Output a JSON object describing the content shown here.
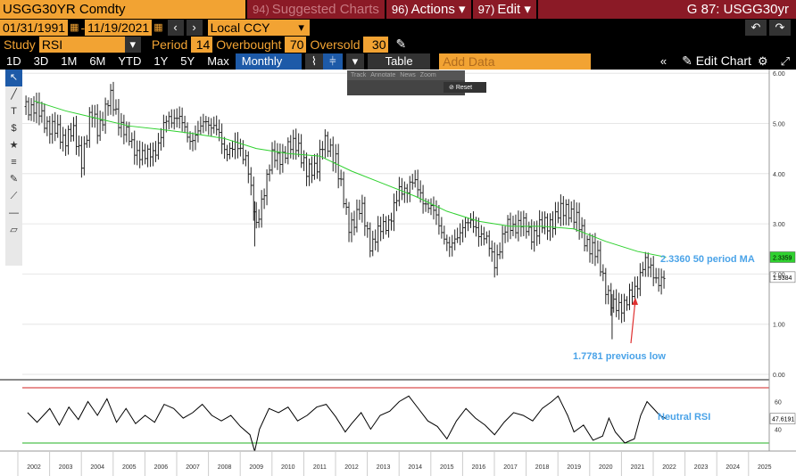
{
  "header": {
    "ticker": "USGG30YR Comdty",
    "menu_suggested": "Suggested Charts",
    "menu_suggested_num": "94)",
    "menu_actions": "Actions",
    "menu_actions_num": "96)",
    "menu_edit": "Edit",
    "menu_edit_num": "97)",
    "title": "G 87: USGG30yr"
  },
  "dates": {
    "start": "01/31/1991",
    "end": "11/19/2021",
    "currency": "Local CCY"
  },
  "study": {
    "label": "Study",
    "value": "RSI",
    "period_label": "Period",
    "period": "14",
    "overbought_label": "Overbought",
    "overbought": "70",
    "oversold_label": "Oversold",
    "oversold": "30"
  },
  "toolbar": {
    "ranges": [
      "1D",
      "3D",
      "1M",
      "6M",
      "YTD",
      "1Y",
      "5Y",
      "Max"
    ],
    "frequency": "Monthly",
    "table": "Table",
    "add_data_placeholder": "Add Data",
    "edit_chart": "Edit Chart"
  },
  "float_tools": {
    "labels": [
      "Track",
      "Annotate",
      "News",
      "Zoom"
    ],
    "reset": "Reset"
  },
  "colors": {
    "accent": "#f2a333",
    "menu": "#8b1a26",
    "ma": "#2fd12f",
    "annotation": "#4aa3e8",
    "arrow": "#e03030",
    "overbought": "#d02020",
    "oversold": "#22b022"
  },
  "chart_data": [
    {
      "type": "ohlc-bar",
      "title": "",
      "series": [
        {
          "name": "USGG30YR",
          "last": "1.9384"
        },
        {
          "name": "50 period MA",
          "last": "2.3359"
        }
      ],
      "x": [
        "2002",
        "2003",
        "2004",
        "2005",
        "2006",
        "2007",
        "2008",
        "2009",
        "2010",
        "2011",
        "2012",
        "2013",
        "2014",
        "2015",
        "2016",
        "2017",
        "2018",
        "2019",
        "2020",
        "2021",
        "2022",
        "2023",
        "2024",
        "2025"
      ],
      "ylim": [
        0,
        6
      ],
      "yticks": [
        "0.00",
        "1.00",
        "2.00",
        "3.00",
        "4.00",
        "5.00",
        "6.00"
      ],
      "price_points": [
        [
          2001.0,
          5.7
        ],
        [
          2001.5,
          5.45
        ],
        [
          2002.0,
          5.3
        ],
        [
          2002.5,
          4.95
        ],
        [
          2002.9,
          4.7
        ],
        [
          2003.2,
          4.85
        ],
        [
          2003.5,
          4.3
        ],
        [
          2003.8,
          5.2
        ],
        [
          2004.0,
          4.9
        ],
        [
          2004.4,
          5.5
        ],
        [
          2004.8,
          4.9
        ],
        [
          2005.1,
          4.55
        ],
        [
          2005.5,
          4.3
        ],
        [
          2005.9,
          4.55
        ],
        [
          2006.2,
          5.1
        ],
        [
          2006.5,
          5.15
        ],
        [
          2006.9,
          4.7
        ],
        [
          2007.2,
          4.8
        ],
        [
          2007.4,
          5.1
        ],
        [
          2007.7,
          4.9
        ],
        [
          2008.0,
          4.5
        ],
        [
          2008.4,
          4.5
        ],
        [
          2008.7,
          4.35
        ],
        [
          2008.9,
          3.3
        ],
        [
          2009.0,
          2.9
        ],
        [
          2009.2,
          3.6
        ],
        [
          2009.5,
          4.3
        ],
        [
          2009.9,
          4.4
        ],
        [
          2010.3,
          4.65
        ],
        [
          2010.6,
          3.95
        ],
        [
          2010.9,
          4.2
        ],
        [
          2011.1,
          4.6
        ],
        [
          2011.5,
          4.35
        ],
        [
          2011.7,
          3.6
        ],
        [
          2011.9,
          2.95
        ],
        [
          2012.3,
          3.3
        ],
        [
          2012.6,
          2.6
        ],
        [
          2012.9,
          2.85
        ],
        [
          2013.2,
          3.1
        ],
        [
          2013.5,
          3.6
        ],
        [
          2013.9,
          3.85
        ],
        [
          2014.2,
          3.55
        ],
        [
          2014.6,
          3.2
        ],
        [
          2014.9,
          2.8
        ],
        [
          2015.1,
          2.45
        ],
        [
          2015.5,
          3.0
        ],
        [
          2015.9,
          2.95
        ],
        [
          2016.2,
          2.7
        ],
        [
          2016.5,
          2.25
        ],
        [
          2016.9,
          2.95
        ],
        [
          2017.3,
          3.0
        ],
        [
          2017.7,
          2.8
        ],
        [
          2018.0,
          2.95
        ],
        [
          2018.4,
          3.1
        ],
        [
          2018.8,
          3.35
        ],
        [
          2019.2,
          2.9
        ],
        [
          2019.5,
          2.55
        ],
        [
          2019.8,
          2.25
        ],
        [
          2020.2,
          1.3
        ],
        [
          2020.4,
          1.35
        ],
        [
          2020.7,
          1.5
        ],
        [
          2020.9,
          1.6
        ],
        [
          2021.2,
          2.3
        ],
        [
          2021.4,
          2.05
        ],
        [
          2021.6,
          1.9
        ],
        [
          2021.9,
          1.94
        ]
      ],
      "ma_points": [
        [
          2001.0,
          5.75
        ],
        [
          2002.0,
          5.45
        ],
        [
          2003.0,
          5.25
        ],
        [
          2004.0,
          5.1
        ],
        [
          2005.0,
          4.95
        ],
        [
          2006.0,
          4.88
        ],
        [
          2007.0,
          4.8
        ],
        [
          2008.0,
          4.7
        ],
        [
          2009.0,
          4.5
        ],
        [
          2010.0,
          4.4
        ],
        [
          2011.0,
          4.35
        ],
        [
          2012.0,
          4.05
        ],
        [
          2013.0,
          3.8
        ],
        [
          2014.0,
          3.55
        ],
        [
          2015.0,
          3.25
        ],
        [
          2016.0,
          3.05
        ],
        [
          2017.0,
          2.95
        ],
        [
          2018.0,
          2.95
        ],
        [
          2019.0,
          2.9
        ],
        [
          2020.0,
          2.65
        ],
        [
          2021.0,
          2.45
        ],
        [
          2021.9,
          2.336
        ]
      ],
      "annotations": [
        {
          "text": "2.3360 50 period MA"
        },
        {
          "text": "1.7781 previous low"
        }
      ]
    },
    {
      "type": "line",
      "title": "",
      "series": [
        {
          "name": "RSI",
          "last": "47.6191"
        }
      ],
      "ylim": [
        20,
        80
      ],
      "yticks": [
        "40",
        "60"
      ],
      "overbought": 70,
      "oversold": 30,
      "rsi_points": [
        [
          2001.0,
          58
        ],
        [
          2001.4,
          46
        ],
        [
          2001.8,
          52
        ],
        [
          2002.1,
          45
        ],
        [
          2002.5,
          55
        ],
        [
          2002.8,
          43
        ],
        [
          2003.1,
          56
        ],
        [
          2003.4,
          47
        ],
        [
          2003.7,
          60
        ],
        [
          2004.0,
          50
        ],
        [
          2004.3,
          62
        ],
        [
          2004.6,
          45
        ],
        [
          2004.9,
          55
        ],
        [
          2005.2,
          44
        ],
        [
          2005.5,
          50
        ],
        [
          2005.8,
          45
        ],
        [
          2006.1,
          58
        ],
        [
          2006.4,
          55
        ],
        [
          2006.7,
          48
        ],
        [
          2007.0,
          52
        ],
        [
          2007.3,
          58
        ],
        [
          2007.6,
          50
        ],
        [
          2007.9,
          46
        ],
        [
          2008.2,
          50
        ],
        [
          2008.5,
          42
        ],
        [
          2008.8,
          36
        ],
        [
          2008.95,
          24
        ],
        [
          2009.1,
          40
        ],
        [
          2009.4,
          55
        ],
        [
          2009.7,
          52
        ],
        [
          2010.0,
          56
        ],
        [
          2010.3,
          46
        ],
        [
          2010.6,
          50
        ],
        [
          2010.9,
          56
        ],
        [
          2011.2,
          58
        ],
        [
          2011.5,
          49
        ],
        [
          2011.8,
          38
        ],
        [
          2012.0,
          44
        ],
        [
          2012.3,
          52
        ],
        [
          2012.6,
          40
        ],
        [
          2012.9,
          50
        ],
        [
          2013.2,
          53
        ],
        [
          2013.5,
          60
        ],
        [
          2013.8,
          64
        ],
        [
          2014.1,
          55
        ],
        [
          2014.4,
          46
        ],
        [
          2014.7,
          42
        ],
        [
          2015.0,
          33
        ],
        [
          2015.3,
          46
        ],
        [
          2015.6,
          55
        ],
        [
          2015.9,
          48
        ],
        [
          2016.2,
          43
        ],
        [
          2016.5,
          36
        ],
        [
          2016.8,
          45
        ],
        [
          2017.1,
          52
        ],
        [
          2017.4,
          50
        ],
        [
          2017.7,
          46
        ],
        [
          2018.0,
          55
        ],
        [
          2018.3,
          60
        ],
        [
          2018.5,
          64
        ],
        [
          2018.8,
          50
        ],
        [
          2019.0,
          38
        ],
        [
          2019.3,
          43
        ],
        [
          2019.6,
          32
        ],
        [
          2019.9,
          35
        ],
        [
          2020.1,
          48
        ],
        [
          2020.3,
          38
        ],
        [
          2020.6,
          30
        ],
        [
          2020.9,
          33
        ],
        [
          2021.1,
          50
        ],
        [
          2021.3,
          60
        ],
        [
          2021.5,
          55
        ],
        [
          2021.7,
          50
        ],
        [
          2021.9,
          47.6
        ]
      ],
      "annotations": [
        {
          "text": "Neutral RSI"
        }
      ]
    }
  ]
}
